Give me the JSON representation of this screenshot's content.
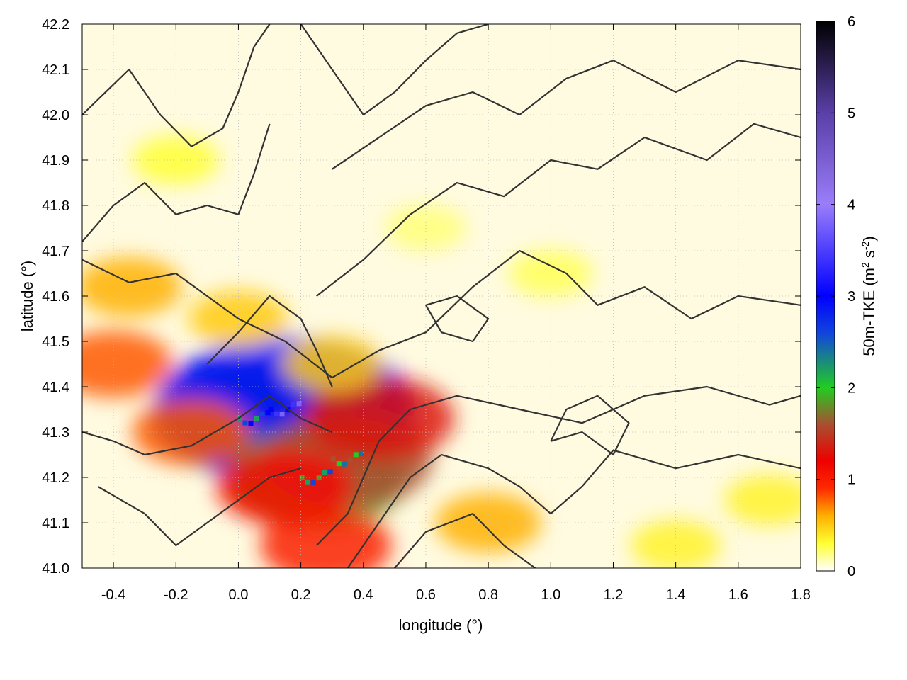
{
  "chart_data": {
    "type": "heatmap",
    "title": "",
    "xlabel": "longitude (°)",
    "ylabel": "latitude (°)",
    "colorbar_label": "50m-TKE",
    "colorbar_units": "(m2 s-2)",
    "xlim": [
      -0.5,
      1.8
    ],
    "ylim": [
      41.0,
      42.2
    ],
    "zlim": [
      0,
      6
    ],
    "x_ticks": [
      "-0.4",
      "-0.2",
      "0.0",
      "0.2",
      "0.4",
      "0.6",
      "0.8",
      "1.0",
      "1.2",
      "1.4",
      "1.6",
      "1.8"
    ],
    "x_tick_values": [
      -0.4,
      -0.2,
      0.0,
      0.2,
      0.4,
      0.6,
      0.8,
      1.0,
      1.2,
      1.4,
      1.6,
      1.8
    ],
    "y_ticks": [
      "41.0",
      "41.1",
      "41.2",
      "41.3",
      "41.4",
      "41.5",
      "41.6",
      "41.7",
      "41.8",
      "41.9",
      "42.0",
      "42.1",
      "42.2"
    ],
    "y_tick_values": [
      41.0,
      41.1,
      41.2,
      41.3,
      41.4,
      41.5,
      41.6,
      41.7,
      41.8,
      41.9,
      42.0,
      42.1,
      42.2
    ],
    "colorbar_ticks": [
      "0",
      "1",
      "2",
      "3",
      "4",
      "5",
      "6"
    ],
    "colorbar_tick_values": [
      0,
      1,
      2,
      3,
      4,
      5,
      6
    ],
    "colormap": [
      [
        0.0,
        "#ffffff"
      ],
      [
        0.3,
        "#ffff33"
      ],
      [
        0.6,
        "#ffb000"
      ],
      [
        0.9,
        "#ff2a00"
      ],
      [
        1.2,
        "#ee0000"
      ],
      [
        1.6,
        "#a85030"
      ],
      [
        2.0,
        "#22cc22"
      ],
      [
        2.6,
        "#1144dd"
      ],
      [
        3.0,
        "#0000ff"
      ],
      [
        4.0,
        "#9a7dfa"
      ],
      [
        5.0,
        "#5a3fa8"
      ],
      [
        6.0,
        "#000000"
      ]
    ],
    "grid": true,
    "contours": true,
    "contour_color": "#333333",
    "tke_field": [
      {
        "lon": 0.05,
        "lat": 41.33,
        "tke": 2.2
      },
      {
        "lon": 0.15,
        "lat": 41.35,
        "tke": 3.0
      },
      {
        "lon": 0.25,
        "lat": 41.2,
        "tke": 1.8
      },
      {
        "lon": 0.35,
        "lat": 41.24,
        "tke": 1.6
      },
      {
        "lon": 0.45,
        "lat": 41.33,
        "tke": 1.3
      },
      {
        "lon": 0.15,
        "lat": 41.18,
        "tke": 1.1
      },
      {
        "lon": 0.28,
        "lat": 41.05,
        "tke": 1.0
      },
      {
        "lon": -0.15,
        "lat": 41.3,
        "tke": 0.8
      },
      {
        "lon": -0.4,
        "lat": 41.45,
        "tke": 0.8
      },
      {
        "lon": -0.35,
        "lat": 41.62,
        "tke": 0.6
      },
      {
        "lon": 0.0,
        "lat": 41.55,
        "tke": 0.5
      },
      {
        "lon": 0.3,
        "lat": 41.45,
        "tke": 0.5
      },
      {
        "lon": 0.8,
        "lat": 41.1,
        "tke": 0.6
      },
      {
        "lon": 1.4,
        "lat": 41.05,
        "tke": 0.35
      },
      {
        "lon": 1.7,
        "lat": 41.15,
        "tke": 0.35
      },
      {
        "lon": 1.0,
        "lat": 41.65,
        "tke": 0.25
      },
      {
        "lon": -0.2,
        "lat": 41.9,
        "tke": 0.3
      },
      {
        "lon": 0.6,
        "lat": 41.75,
        "tke": 0.2
      }
    ]
  }
}
